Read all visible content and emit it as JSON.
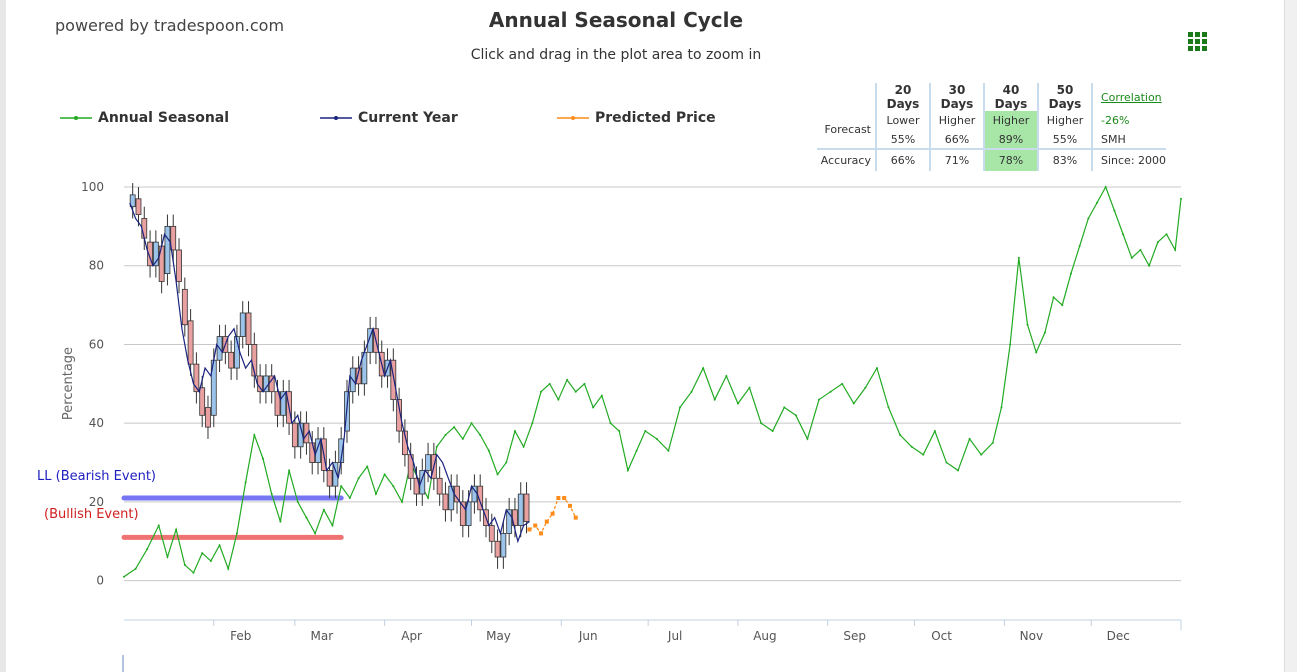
{
  "powered_by": "powered by tradespoon.com",
  "title": "Annual Seasonal Cycle",
  "subtitle": "Click and drag in the plot area to zoom in",
  "legend": {
    "annual": "Annual Seasonal",
    "current": "Current Year",
    "predicted": "Predicted Price"
  },
  "colors": {
    "annual": "#22aa22",
    "current": "#1a237e",
    "predicted": "#ff8c1a",
    "bearish": "#6f6ff5",
    "bullish": "#f06c6c",
    "candle_up": "#9cc3ea",
    "candle_down": "#e8a0a0"
  },
  "forecast_table": {
    "headers": [
      "20 Days",
      "30 Days",
      "40 Days",
      "50 Days"
    ],
    "forecast_label": "Forecast",
    "forecast_dir": [
      "Lower",
      "Higher",
      "Higher",
      "Higher"
    ],
    "forecast_pct": [
      "55%",
      "66%",
      "89%",
      "55%"
    ],
    "accuracy_label": "Accuracy",
    "accuracy": [
      "66%",
      "71%",
      "78%",
      "83%"
    ],
    "highlight_col": 2,
    "correlation_label": "Correlation",
    "correlation_value": "-26%",
    "symbol": "SMH",
    "since": "Since: 2000"
  },
  "events": {
    "bearish": "LL (Bearish Event)",
    "bullish": "(Bullish Event)"
  },
  "chart_data": {
    "type": "line",
    "ylabel": "Percentage",
    "ylim": [
      -10,
      100
    ],
    "yticks": [
      0,
      20,
      40,
      60,
      80,
      100
    ],
    "xlim": [
      0,
      365
    ],
    "months": [
      {
        "label": "Feb",
        "day": 31
      },
      {
        "label": "Mar",
        "day": 59
      },
      {
        "label": "Apr",
        "day": 90
      },
      {
        "label": "May",
        "day": 120
      },
      {
        "label": "Jun",
        "day": 151
      },
      {
        "label": "Jul",
        "day": 181
      },
      {
        "label": "Aug",
        "day": 212
      },
      {
        "label": "Sep",
        "day": 243
      },
      {
        "label": "Oct",
        "day": 273
      },
      {
        "label": "Nov",
        "day": 304
      },
      {
        "label": "Dec",
        "day": 334
      }
    ],
    "series": [
      {
        "name": "Annual Seasonal",
        "x": [
          0,
          4,
          8,
          12,
          15,
          18,
          21,
          24,
          27,
          30,
          33,
          36,
          39,
          42,
          45,
          48,
          51,
          54,
          57,
          60,
          63,
          66,
          69,
          72,
          75,
          78,
          81,
          84,
          87,
          90,
          93,
          96,
          99,
          102,
          105,
          108,
          111,
          114,
          117,
          120,
          123,
          126,
          129,
          132,
          135,
          138,
          141,
          144,
          147,
          150,
          153,
          156,
          159,
          162,
          165,
          168,
          171,
          174,
          177,
          180,
          184,
          188,
          192,
          196,
          200,
          204,
          208,
          212,
          216,
          220,
          224,
          228,
          232,
          236,
          240,
          244,
          248,
          252,
          256,
          260,
          264,
          268,
          272,
          276,
          280,
          284,
          288,
          292,
          296,
          300,
          303,
          306,
          309,
          312,
          315,
          318,
          321,
          324,
          327,
          330,
          333,
          336,
          339,
          342,
          345,
          348,
          351,
          354,
          357,
          360,
          363,
          365
        ],
        "y": [
          1,
          3,
          8,
          14,
          6,
          13,
          4,
          2,
          7,
          5,
          9,
          3,
          12,
          25,
          37,
          31,
          22,
          15,
          28,
          20,
          16,
          12,
          18,
          14,
          24,
          21,
          26,
          29,
          22,
          27,
          24,
          20,
          30,
          25,
          21,
          34,
          37,
          39,
          36,
          40,
          37,
          33,
          27,
          30,
          38,
          34,
          40,
          48,
          50,
          46,
          51,
          48,
          50,
          44,
          47,
          40,
          38,
          28,
          33,
          38,
          36,
          33,
          44,
          48,
          54,
          46,
          52,
          45,
          49,
          40,
          38,
          44,
          42,
          36,
          46,
          48,
          50,
          45,
          49,
          54,
          44,
          37,
          34,
          32,
          38,
          30,
          28,
          36,
          32,
          35,
          44,
          60,
          82,
          65,
          58,
          63,
          72,
          70,
          78,
          85,
          92,
          96,
          100,
          94,
          88,
          82,
          84,
          80,
          86,
          88,
          84,
          97
        ]
      },
      {
        "name": "Current Year",
        "x": [
          2,
          4,
          6,
          8,
          10,
          12,
          14,
          16,
          18,
          20,
          22,
          24,
          26,
          28,
          30,
          32,
          34,
          36,
          38,
          40,
          42,
          44,
          46,
          48,
          50,
          52,
          54,
          56,
          58,
          60,
          62,
          64,
          66,
          68,
          70,
          72,
          74,
          76,
          78,
          80,
          82,
          84,
          86,
          88,
          90,
          92,
          94,
          96,
          98,
          100,
          102,
          104,
          106,
          108,
          110,
          112,
          114,
          116,
          118,
          120,
          122,
          124,
          126,
          128,
          130,
          132,
          134,
          136,
          138,
          140
        ],
        "y": [
          96,
          92,
          90,
          84,
          80,
          82,
          88,
          86,
          76,
          64,
          56,
          50,
          48,
          54,
          52,
          60,
          58,
          62,
          64,
          58,
          54,
          56,
          50,
          48,
          50,
          52,
          46,
          48,
          40,
          42,
          36,
          38,
          32,
          36,
          28,
          30,
          26,
          36,
          52,
          50,
          56,
          60,
          64,
          58,
          52,
          56,
          48,
          40,
          34,
          30,
          24,
          28,
          26,
          32,
          30,
          26,
          22,
          20,
          18,
          24,
          22,
          18,
          14,
          16,
          12,
          18,
          16,
          10,
          14,
          15
        ]
      },
      {
        "name": "Predicted Price",
        "x": [
          140,
          142,
          144,
          146,
          148,
          150,
          152,
          154,
          156
        ],
        "y": [
          13,
          14,
          12,
          15,
          17,
          21,
          21,
          19,
          16
        ]
      }
    ],
    "candles": [
      {
        "x": 3,
        "o": 95,
        "c": 98
      },
      {
        "x": 5,
        "o": 97,
        "c": 93
      },
      {
        "x": 7,
        "o": 92,
        "c": 87
      },
      {
        "x": 9,
        "o": 86,
        "c": 80
      },
      {
        "x": 11,
        "o": 80,
        "c": 86
      },
      {
        "x": 13,
        "o": 85,
        "c": 76
      },
      {
        "x": 15,
        "o": 78,
        "c": 90
      },
      {
        "x": 17,
        "o": 90,
        "c": 84
      },
      {
        "x": 19,
        "o": 84,
        "c": 76
      },
      {
        "x": 21,
        "o": 74,
        "c": 65
      },
      {
        "x": 23,
        "o": 66,
        "c": 55
      },
      {
        "x": 25,
        "o": 55,
        "c": 48
      },
      {
        "x": 27,
        "o": 49,
        "c": 42
      },
      {
        "x": 29,
        "o": 44,
        "c": 39
      },
      {
        "x": 31,
        "o": 42,
        "c": 56
      },
      {
        "x": 33,
        "o": 56,
        "c": 62
      },
      {
        "x": 35,
        "o": 62,
        "c": 58
      },
      {
        "x": 37,
        "o": 58,
        "c": 54
      },
      {
        "x": 39,
        "o": 54,
        "c": 62
      },
      {
        "x": 41,
        "o": 62,
        "c": 68
      },
      {
        "x": 43,
        "o": 68,
        "c": 60
      },
      {
        "x": 45,
        "o": 60,
        "c": 52
      },
      {
        "x": 47,
        "o": 52,
        "c": 48
      },
      {
        "x": 49,
        "o": 48,
        "c": 52
      },
      {
        "x": 51,
        "o": 52,
        "c": 48
      },
      {
        "x": 53,
        "o": 48,
        "c": 42
      },
      {
        "x": 55,
        "o": 42,
        "c": 48
      },
      {
        "x": 57,
        "o": 48,
        "c": 40
      },
      {
        "x": 59,
        "o": 40,
        "c": 34
      },
      {
        "x": 61,
        "o": 34,
        "c": 40
      },
      {
        "x": 63,
        "o": 40,
        "c": 35
      },
      {
        "x": 65,
        "o": 35,
        "c": 30
      },
      {
        "x": 67,
        "o": 30,
        "c": 36
      },
      {
        "x": 69,
        "o": 36,
        "c": 28
      },
      {
        "x": 71,
        "o": 28,
        "c": 24
      },
      {
        "x": 73,
        "o": 24,
        "c": 30
      },
      {
        "x": 75,
        "o": 30,
        "c": 36
      },
      {
        "x": 77,
        "o": 38,
        "c": 48
      },
      {
        "x": 79,
        "o": 48,
        "c": 54
      },
      {
        "x": 81,
        "o": 54,
        "c": 50
      },
      {
        "x": 83,
        "o": 50,
        "c": 58
      },
      {
        "x": 85,
        "o": 58,
        "c": 64
      },
      {
        "x": 87,
        "o": 64,
        "c": 58
      },
      {
        "x": 89,
        "o": 58,
        "c": 52
      },
      {
        "x": 91,
        "o": 52,
        "c": 56
      },
      {
        "x": 93,
        "o": 56,
        "c": 46
      },
      {
        "x": 95,
        "o": 46,
        "c": 38
      },
      {
        "x": 97,
        "o": 38,
        "c": 32
      },
      {
        "x": 99,
        "o": 32,
        "c": 26
      },
      {
        "x": 101,
        "o": 26,
        "c": 22
      },
      {
        "x": 103,
        "o": 22,
        "c": 28
      },
      {
        "x": 105,
        "o": 28,
        "c": 32
      },
      {
        "x": 107,
        "o": 32,
        "c": 26
      },
      {
        "x": 109,
        "o": 26,
        "c": 22
      },
      {
        "x": 111,
        "o": 22,
        "c": 18
      },
      {
        "x": 113,
        "o": 18,
        "c": 24
      },
      {
        "x": 115,
        "o": 24,
        "c": 20
      },
      {
        "x": 117,
        "o": 20,
        "c": 14
      },
      {
        "x": 119,
        "o": 14,
        "c": 20
      },
      {
        "x": 121,
        "o": 20,
        "c": 24
      },
      {
        "x": 123,
        "o": 24,
        "c": 18
      },
      {
        "x": 125,
        "o": 18,
        "c": 14
      },
      {
        "x": 127,
        "o": 14,
        "c": 10
      },
      {
        "x": 129,
        "o": 10,
        "c": 6
      },
      {
        "x": 131,
        "o": 6,
        "c": 12
      },
      {
        "x": 133,
        "o": 12,
        "c": 18
      },
      {
        "x": 135,
        "o": 18,
        "c": 14
      },
      {
        "x": 137,
        "o": 14,
        "c": 22
      },
      {
        "x": 139,
        "o": 22,
        "c": 15
      }
    ],
    "events": [
      {
        "name": "LL (Bearish Event)",
        "y": 21,
        "x": [
          0,
          75
        ]
      },
      {
        "name": "(Bullish Event)",
        "y": 11,
        "x": [
          0,
          75
        ]
      }
    ]
  }
}
